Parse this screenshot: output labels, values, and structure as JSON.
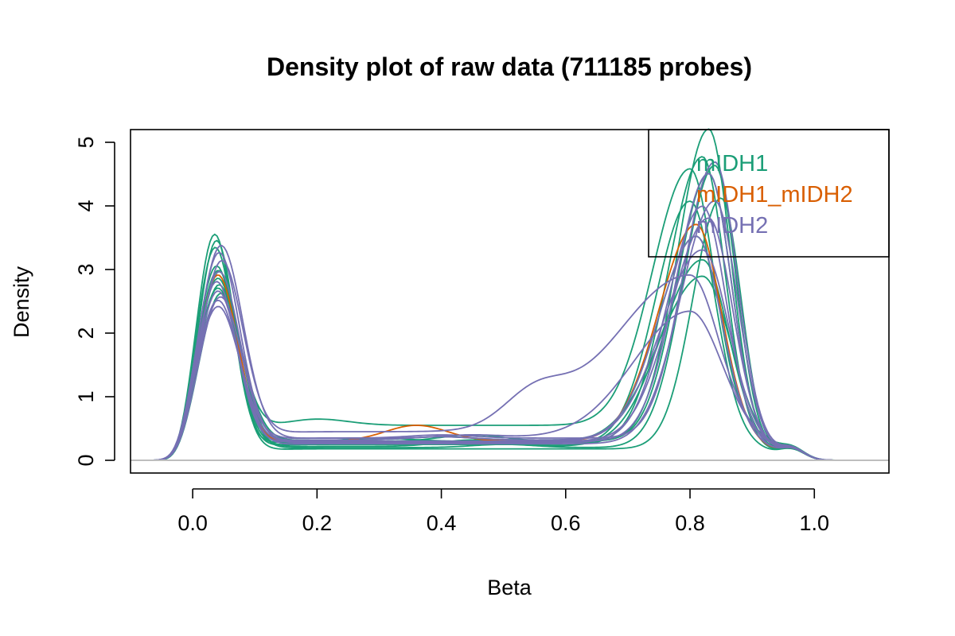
{
  "chart_data": {
    "type": "line",
    "title": "Density plot of raw data (711185 probes)",
    "xlabel": "Beta",
    "ylabel": "Density",
    "xlim": [
      -0.1,
      1.12
    ],
    "ylim": [
      -0.2,
      5.2
    ],
    "xticks": [
      0.0,
      0.2,
      0.4,
      0.6,
      0.8,
      1.0
    ],
    "xtick_labels": [
      "0.0",
      "0.2",
      "0.4",
      "0.6",
      "0.8",
      "1.0"
    ],
    "yticks": [
      0,
      1,
      2,
      3,
      4,
      5
    ],
    "ytick_labels": [
      "0",
      "1",
      "2",
      "3",
      "4",
      "5"
    ],
    "grid": false,
    "baseline": 0,
    "legend": {
      "position": "top-right",
      "entries": [
        {
          "label": "mIDH1",
          "color": "#1b9e77"
        },
        {
          "label": "mIDH1_mIDH2",
          "color": "#d95f02"
        },
        {
          "label": "mIDH2",
          "color": "#7570b3"
        }
      ]
    },
    "series": [
      {
        "group": "mIDH1",
        "color": "#1b9e77",
        "peak1": {
          "x": 0.035,
          "y": 3.55,
          "w": 0.03
        },
        "plateau": 0.3,
        "bump": {
          "x": 0.45,
          "y": 0.1
        },
        "peak2": {
          "x": 0.83,
          "y": 5.0,
          "wl": 0.05,
          "wr": 0.035
        }
      },
      {
        "group": "mIDH1",
        "color": "#1b9e77",
        "peak1": {
          "x": 0.038,
          "y": 3.05,
          "w": 0.032
        },
        "plateau": 0.25,
        "bump": {
          "x": 0.3,
          "y": 0.0
        },
        "peak2": {
          "x": 0.82,
          "y": 4.6,
          "wl": 0.055,
          "wr": 0.036
        }
      },
      {
        "group": "mIDH1",
        "color": "#1b9e77",
        "peak1": {
          "x": 0.04,
          "y": 2.95,
          "w": 0.034
        },
        "plateau": 0.55,
        "bump": {
          "x": 0.2,
          "y": 0.1
        },
        "peak2": {
          "x": 0.8,
          "y": 4.2,
          "wl": 0.06,
          "wr": 0.038
        }
      },
      {
        "group": "mIDH1",
        "color": "#1b9e77",
        "peak1": {
          "x": 0.042,
          "y": 2.75,
          "w": 0.033
        },
        "plateau": 0.2,
        "bump": {
          "x": 0.5,
          "y": 0.05
        },
        "peak2": {
          "x": 0.84,
          "y": 4.5,
          "wl": 0.05,
          "wr": 0.034
        }
      },
      {
        "group": "mIDH1",
        "color": "#1b9e77",
        "peak1": {
          "x": 0.036,
          "y": 3.35,
          "w": 0.031
        },
        "plateau": 0.18,
        "bump": {
          "x": 0.45,
          "y": 0.0
        },
        "peak2": {
          "x": 0.85,
          "y": 4.0,
          "wl": 0.045,
          "wr": 0.032
        }
      },
      {
        "group": "mIDH1",
        "color": "#1b9e77",
        "peak1": {
          "x": 0.045,
          "y": 2.6,
          "w": 0.035
        },
        "plateau": 0.32,
        "bump": {
          "x": 0.4,
          "y": 0.05
        },
        "peak2": {
          "x": 0.81,
          "y": 3.3,
          "wl": 0.06,
          "wr": 0.04
        }
      },
      {
        "group": "mIDH1",
        "color": "#1b9e77",
        "peak1": {
          "x": 0.04,
          "y": 2.85,
          "w": 0.033
        },
        "plateau": 0.28,
        "bump": {
          "x": 0.45,
          "y": 0.0
        },
        "peak2": {
          "x": 0.82,
          "y": 2.7,
          "wl": 0.07,
          "wr": 0.045
        }
      },
      {
        "group": "mIDH1",
        "color": "#1b9e77",
        "peak1": {
          "x": 0.038,
          "y": 3.45,
          "w": 0.03
        },
        "plateau": 0.25,
        "bump": {
          "x": 0.45,
          "y": 0.0
        },
        "peak2": {
          "x": 0.8,
          "y": 3.9,
          "wl": 0.055,
          "wr": 0.04
        }
      },
      {
        "group": "mIDH1",
        "color": "#1b9e77",
        "peak1": {
          "x": 0.042,
          "y": 2.95,
          "w": 0.033
        },
        "plateau": 0.3,
        "bump": {
          "x": 0.3,
          "y": 0.05
        },
        "peak2": {
          "x": 0.83,
          "y": 4.3,
          "wl": 0.05,
          "wr": 0.036
        }
      },
      {
        "group": "mIDH1",
        "color": "#1b9e77",
        "peak1": {
          "x": 0.04,
          "y": 2.7,
          "w": 0.034
        },
        "plateau": 0.22,
        "bump": {
          "x": 0.45,
          "y": 0.1
        },
        "peak2": {
          "x": 0.82,
          "y": 3.0,
          "wl": 0.065,
          "wr": 0.042
        }
      },
      {
        "group": "mIDH1_mIDH2",
        "color": "#d95f02",
        "peak1": {
          "x": 0.04,
          "y": 2.9,
          "w": 0.033
        },
        "plateau": 0.3,
        "bump": {
          "x": 0.36,
          "y": 0.25
        },
        "peak2": {
          "x": 0.81,
          "y": 3.5,
          "wl": 0.06,
          "wr": 0.04
        }
      },
      {
        "group": "mIDH2",
        "color": "#7570b3",
        "peak1": {
          "x": 0.045,
          "y": 3.35,
          "w": 0.036
        },
        "plateau": 0.35,
        "bump": {
          "x": 0.4,
          "y": 0.05
        },
        "peak2": {
          "x": 0.84,
          "y": 4.45,
          "wl": 0.05,
          "wr": 0.035
        }
      },
      {
        "group": "mIDH2",
        "color": "#7570b3",
        "peak1": {
          "x": 0.042,
          "y": 3.25,
          "w": 0.034
        },
        "plateau": 0.3,
        "bump": {
          "x": 0.4,
          "y": 0.0
        },
        "peak2": {
          "x": 0.83,
          "y": 4.3,
          "wl": 0.052,
          "wr": 0.036
        }
      },
      {
        "group": "mIDH2",
        "color": "#7570b3",
        "peak1": {
          "x": 0.04,
          "y": 2.4,
          "w": 0.036
        },
        "plateau": 0.35,
        "bump": {
          "x": 0.45,
          "y": 0.05
        },
        "peak2": {
          "x": 0.8,
          "y": 2.1,
          "wl": 0.09,
          "wr": 0.05
        }
      },
      {
        "group": "mIDH2",
        "color": "#7570b3",
        "peak1": {
          "x": 0.044,
          "y": 2.55,
          "w": 0.035
        },
        "plateau": 0.28,
        "bump": {
          "x": 0.4,
          "y": 0.0
        },
        "peak2": {
          "x": 0.82,
          "y": 3.8,
          "wl": 0.055,
          "wr": 0.038
        }
      },
      {
        "group": "mIDH2",
        "color": "#7570b3",
        "peak1": {
          "x": 0.038,
          "y": 2.8,
          "w": 0.033
        },
        "plateau": 0.3,
        "bump": {
          "x": 0.4,
          "y": 0.0
        },
        "peak2": {
          "x": 0.83,
          "y": 3.6,
          "wl": 0.06,
          "wr": 0.038
        }
      },
      {
        "group": "mIDH2",
        "color": "#7570b3",
        "peak1": {
          "x": 0.046,
          "y": 3.1,
          "w": 0.035
        },
        "plateau": 0.45,
        "bump": {
          "x": 0.55,
          "y": 0.5
        },
        "peak2": {
          "x": 0.8,
          "y": 2.6,
          "wl": 0.12,
          "wr": 0.045
        }
      },
      {
        "group": "mIDH2",
        "color": "#7570b3",
        "peak1": {
          "x": 0.04,
          "y": 2.65,
          "w": 0.034
        },
        "plateau": 0.26,
        "bump": {
          "x": 0.4,
          "y": 0.0
        },
        "peak2": {
          "x": 0.84,
          "y": 3.9,
          "wl": 0.055,
          "wr": 0.036
        }
      },
      {
        "group": "mIDH2",
        "color": "#7570b3",
        "peak1": {
          "x": 0.042,
          "y": 2.95,
          "w": 0.034
        },
        "plateau": 0.32,
        "bump": {
          "x": 0.4,
          "y": 0.05
        },
        "peak2": {
          "x": 0.81,
          "y": 3.3,
          "wl": 0.06,
          "wr": 0.04
        }
      },
      {
        "group": "mIDH2",
        "color": "#7570b3",
        "peak1": {
          "x": 0.04,
          "y": 2.5,
          "w": 0.035
        },
        "plateau": 0.3,
        "bump": {
          "x": 0.4,
          "y": 0.0
        },
        "peak2": {
          "x": 0.82,
          "y": 3.1,
          "wl": 0.065,
          "wr": 0.042
        }
      }
    ]
  }
}
